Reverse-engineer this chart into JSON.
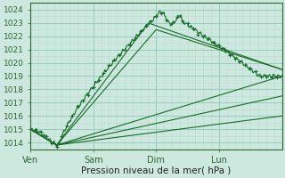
{
  "bg_color": "#cce8df",
  "grid_major_color": "#99ccbb",
  "grid_minor_color": "#bbddcc",
  "line_color": "#1a6b2a",
  "ylim": [
    1013.5,
    1024.5
  ],
  "yticks": [
    1014,
    1015,
    1016,
    1017,
    1018,
    1019,
    1020,
    1021,
    1022,
    1023,
    1024
  ],
  "xlim": [
    0,
    192
  ],
  "day_labels": [
    "Ven",
    "Sam",
    "Dim",
    "Lun"
  ],
  "day_positions": [
    0,
    48,
    96,
    144
  ],
  "xlabel": "Pression niveau de la mer( hPa )",
  "xlabel_fontsize": 7.5
}
